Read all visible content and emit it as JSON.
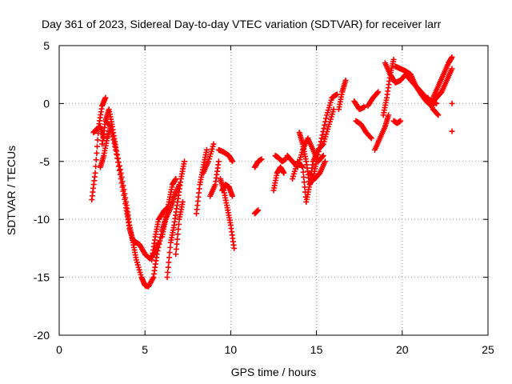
{
  "chart_data": {
    "type": "scatter",
    "title": "Day 361 of 2023, Sidereal Day-to-day VTEC variation (SDTVAR) for receiver larr",
    "xlabel": "GPS time / hours",
    "ylabel": "SDTVAR / TECUs",
    "xlim": [
      0,
      25
    ],
    "ylim": [
      -20,
      5
    ],
    "xticks": [
      "0",
      "5",
      "10",
      "15",
      "20",
      "25"
    ],
    "yticks": [
      "5",
      "0",
      "-5",
      "-10",
      "-15",
      "-20"
    ],
    "grid": true,
    "marker": "plus",
    "color": "#ff0000",
    "series": [
      {
        "name": "SDTVAR",
        "segments": [
          {
            "x": [
              1.9,
              2.1,
              2.3,
              2.5,
              2.7
            ],
            "y": [
              -8.3,
              -6.0,
              -2.0,
              -0.2,
              0.5
            ]
          },
          {
            "x": [
              2.0,
              2.2,
              2.4,
              2.6
            ],
            "y": [
              -2.5,
              -2.2,
              -2.0,
              -3.0
            ]
          },
          {
            "x": [
              2.5,
              2.7,
              2.9,
              3.1,
              3.3,
              3.6,
              3.9,
              4.1,
              4.3,
              4.5,
              4.8,
              5.0,
              5.2
            ],
            "y": [
              -3.5,
              -1.5,
              -0.5,
              -2.0,
              -3.8,
              -6.0,
              -8.5,
              -10.5,
              -12.0,
              -13.5,
              -15.0,
              -15.7,
              -15.8
            ]
          },
          {
            "x": [
              2.7,
              3.0,
              3.3,
              3.6,
              3.9,
              4.1,
              4.3,
              4.5,
              4.7,
              5.0,
              5.3,
              5.6,
              5.8
            ],
            "y": [
              -1.5,
              -2.0,
              -4.0,
              -6.5,
              -9.0,
              -10.8,
              -11.8,
              -12.0,
              -12.2,
              -13.0,
              -13.4,
              -12.8,
              -12.0
            ]
          },
          {
            "x": [
              2.4,
              2.6,
              2.8,
              3.0
            ],
            "y": [
              -5.5,
              -4.5,
              -3.0,
              -2.0
            ]
          },
          {
            "x": [
              5.2,
              5.5,
              5.7,
              6.0,
              6.2,
              6.5,
              6.7,
              7.0
            ],
            "y": [
              -15.8,
              -15.0,
              -13.0,
              -11.0,
              -10.0,
              -9.0,
              -8.0,
              -7.0
            ]
          },
          {
            "x": [
              5.4,
              5.6,
              5.8,
              6.1,
              6.3
            ],
            "y": [
              -13.5,
              -11.5,
              -10.0,
              -9.3,
              -9.0
            ]
          },
          {
            "x": [
              6.3,
              6.5,
              6.7,
              6.9,
              7.1,
              7.3
            ],
            "y": [
              -15.0,
              -12.0,
              -10.5,
              -8.5,
              -6.5,
              -5.0
            ]
          },
          {
            "x": [
              6.0,
              6.2,
              6.4,
              6.6,
              6.8
            ],
            "y": [
              -11.5,
              -10.0,
              -8.5,
              -7.0,
              -6.5
            ]
          },
          {
            "x": [
              6.8,
              7.0,
              7.2
            ],
            "y": [
              -13.0,
              -10.0,
              -8.5
            ]
          },
          {
            "x": [
              8.0,
              8.2,
              8.4,
              8.6
            ],
            "y": [
              -9.5,
              -7.0,
              -5.5,
              -4.0
            ]
          },
          {
            "x": [
              8.4,
              8.7,
              9.0
            ],
            "y": [
              -6.0,
              -5.0,
              -3.5
            ]
          },
          {
            "x": [
              8.8,
              9.1,
              9.3
            ],
            "y": [
              -8.0,
              -7.0,
              -5.0
            ]
          },
          {
            "x": [
              9.3,
              9.6,
              9.9,
              10.1
            ],
            "y": [
              -4.0,
              -4.2,
              -4.5,
              -5.0
            ]
          },
          {
            "x": [
              9.4,
              9.6,
              9.8,
              10.0,
              10.2
            ],
            "y": [
              -6.5,
              -7.5,
              -9.0,
              -10.5,
              -12.5
            ]
          },
          {
            "x": [
              9.5,
              9.7,
              9.9,
              10.1
            ],
            "y": [
              -7.5,
              -7.0,
              -7.2,
              -8.0
            ]
          },
          {
            "x": [
              11.4,
              11.6
            ],
            "y": [
              -9.5,
              -9.2
            ]
          },
          {
            "x": [
              11.4,
              11.6,
              11.8
            ],
            "y": [
              -5.5,
              -5.0,
              -4.8
            ]
          },
          {
            "x": [
              12.5,
              12.7,
              12.9,
              13.1
            ],
            "y": [
              -7.5,
              -6.0,
              -5.5,
              -6.0
            ]
          },
          {
            "x": [
              12.6,
              12.8,
              13.0,
              13.2
            ],
            "y": [
              -4.5,
              -4.7,
              -5.0,
              -4.8
            ]
          },
          {
            "x": [
              13.3,
              13.6,
              13.9,
              14.2,
              14.5,
              14.8,
              15.1,
              15.4
            ],
            "y": [
              -4.5,
              -5.0,
              -5.5,
              -4.0,
              -3.0,
              -4.0,
              -5.0,
              -4.5
            ]
          },
          {
            "x": [
              13.6,
              13.9,
              14.2,
              14.4,
              14.6,
              14.8,
              15.1,
              15.4,
              15.7,
              16.0
            ],
            "y": [
              -6.5,
              -5.0,
              -5.5,
              -8.5,
              -7.0,
              -5.0,
              -4.0,
              -3.5,
              -2.0,
              -0.5
            ]
          },
          {
            "x": [
              14.0,
              14.2,
              14.4,
              14.6,
              14.8,
              15.0,
              15.3,
              15.6,
              15.9,
              16.2
            ],
            "y": [
              -2.5,
              -3.5,
              -5.0,
              -7.0,
              -6.5,
              -5.0,
              -3.0,
              -1.0,
              0.5,
              0.8
            ]
          },
          {
            "x": [
              14.6,
              14.9,
              15.2,
              15.5
            ],
            "y": [
              -6.0,
              -6.5,
              -6.0,
              -5.0
            ]
          },
          {
            "x": [
              16.3,
              16.5,
              16.7
            ],
            "y": [
              -0.5,
              1.0,
              2.0
            ]
          },
          {
            "x": [
              17.2,
              17.5,
              17.8
            ],
            "y": [
              0.2,
              -0.5,
              -0.3
            ]
          },
          {
            "x": [
              17.3,
              17.6,
              17.9,
              18.2
            ],
            "y": [
              -1.5,
              -1.8,
              -2.5,
              -3.0
            ]
          },
          {
            "x": [
              18.0,
              18.3,
              18.6
            ],
            "y": [
              -0.2,
              0.5,
              1.0
            ]
          },
          {
            "x": [
              18.4,
              18.7,
              19.0,
              19.2
            ],
            "y": [
              -4.0,
              -3.0,
              -2.0,
              -1.0
            ]
          },
          {
            "x": [
              18.9,
              19.1,
              19.3,
              19.5
            ],
            "y": [
              -1.0,
              0.5,
              2.5,
              3.8
            ]
          },
          {
            "x": [
              19.0,
              19.3,
              19.6,
              19.9,
              20.2,
              20.5,
              20.8,
              21.1,
              21.4,
              21.7,
              22.0
            ],
            "y": [
              3.5,
              2.5,
              1.8,
              2.0,
              2.5,
              2.0,
              1.5,
              1.0,
              0.5,
              0.2,
              0.0
            ]
          },
          {
            "x": [
              19.6,
              19.9,
              20.2,
              20.5,
              20.8,
              21.1,
              21.4,
              21.7
            ],
            "y": [
              3.2,
              3.0,
              2.8,
              2.5,
              1.5,
              0.8,
              0.2,
              -0.2
            ]
          },
          {
            "x": [
              19.5,
              19.7,
              19.9
            ],
            "y": [
              -1.5,
              -1.7,
              -1.5
            ]
          },
          {
            "x": [
              21.5,
              21.8,
              22.1
            ],
            "y": [
              0.5,
              -0.5,
              -1.0
            ]
          },
          {
            "x": [
              21.8,
              22.1,
              22.4,
              22.7,
              22.9
            ],
            "y": [
              0.5,
              1.5,
              2.5,
              3.5,
              4.0
            ]
          },
          {
            "x": [
              21.7,
              22.0,
              22.3,
              22.6,
              22.9
            ],
            "y": [
              0.0,
              0.5,
              1.0,
              2.0,
              3.0
            ]
          },
          {
            "x": [
              22.9
            ],
            "y": [
              0.0
            ]
          },
          {
            "x": [
              22.9
            ],
            "y": [
              -2.4
            ]
          }
        ]
      }
    ]
  }
}
